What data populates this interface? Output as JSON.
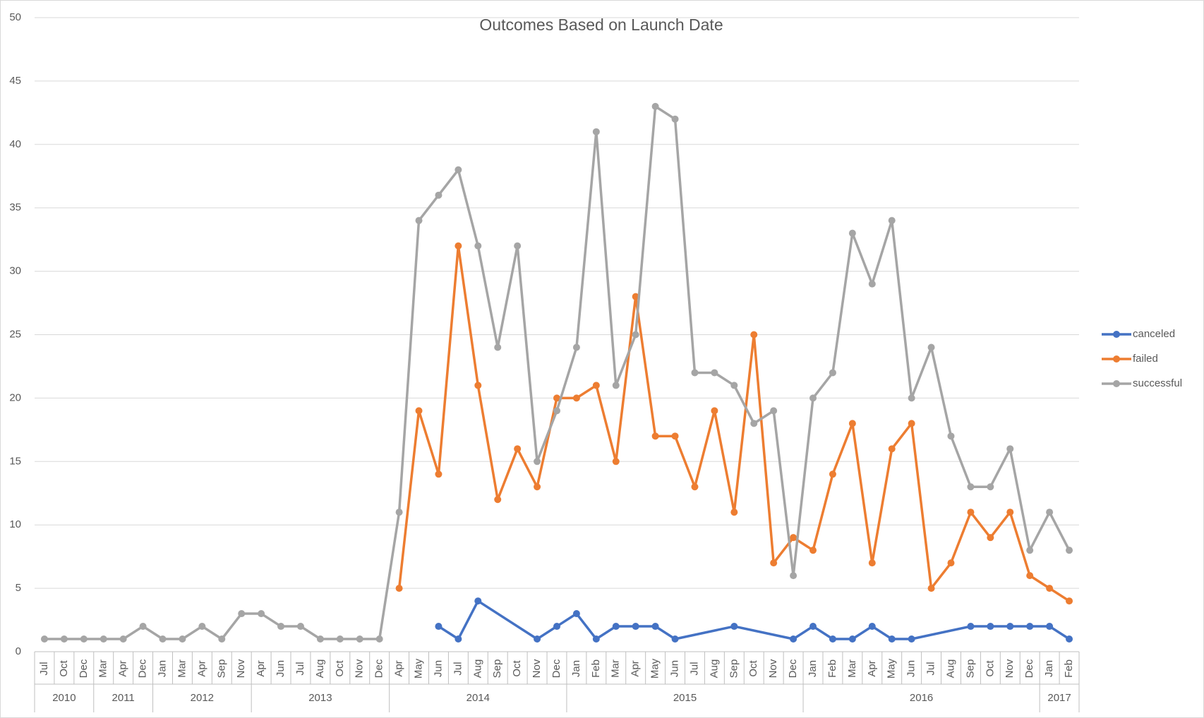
{
  "chart_data": {
    "type": "line",
    "title": "Outcomes Based on Launch Date",
    "groups": [
      {
        "label": "2010",
        "categories": [
          "Jul",
          "Oct",
          "Dec"
        ]
      },
      {
        "label": "2011",
        "categories": [
          "Mar",
          "Apr",
          "Dec"
        ]
      },
      {
        "label": "2012",
        "categories": [
          "Jan",
          "Mar",
          "Apr",
          "Sep",
          "Nov"
        ]
      },
      {
        "label": "2013",
        "categories": [
          "Apr",
          "Jun",
          "Jul",
          "Aug",
          "Oct",
          "Nov",
          "Dec"
        ]
      },
      {
        "label": "2014",
        "categories": [
          "Apr",
          "May",
          "Jun",
          "Jul",
          "Aug",
          "Sep",
          "Oct",
          "Nov",
          "Dec"
        ]
      },
      {
        "label": "2015",
        "categories": [
          "Jan",
          "Feb",
          "Mar",
          "Apr",
          "May",
          "Jun",
          "Jul",
          "Aug",
          "Sep",
          "Oct",
          "Nov",
          "Dec"
        ]
      },
      {
        "label": "2016",
        "categories": [
          "Jan",
          "Feb",
          "Mar",
          "Apr",
          "May",
          "Jun",
          "Jul",
          "Aug",
          "Sep",
          "Oct",
          "Nov",
          "Dec"
        ]
      },
      {
        "label": "2017",
        "categories": [
          "Jan",
          "Feb"
        ]
      }
    ],
    "series": [
      {
        "name": "canceled",
        "color": "#4472c4",
        "values": [
          null,
          null,
          null,
          null,
          null,
          null,
          null,
          null,
          null,
          null,
          null,
          null,
          null,
          null,
          null,
          null,
          null,
          null,
          null,
          null,
          2,
          1,
          4,
          null,
          null,
          1,
          2,
          3,
          1,
          2,
          2,
          2,
          1,
          null,
          null,
          2,
          null,
          null,
          1,
          2,
          1,
          1,
          2,
          1,
          1,
          null,
          null,
          2,
          2,
          2,
          2,
          2,
          1
        ]
      },
      {
        "name": "failed",
        "color": "#ed7d31",
        "values": [
          null,
          null,
          null,
          null,
          null,
          null,
          null,
          null,
          null,
          null,
          null,
          null,
          null,
          null,
          null,
          null,
          null,
          null,
          5,
          19,
          14,
          32,
          21,
          12,
          16,
          13,
          20,
          20,
          21,
          15,
          28,
          17,
          17,
          13,
          19,
          11,
          25,
          7,
          9,
          8,
          14,
          18,
          7,
          16,
          18,
          5,
          7,
          11,
          9,
          11,
          6,
          5,
          4
        ]
      },
      {
        "name": "successful",
        "color": "#a5a5a5",
        "values": [
          1,
          1,
          1,
          1,
          1,
          2,
          1,
          1,
          2,
          1,
          3,
          3,
          2,
          2,
          1,
          1,
          1,
          1,
          11,
          34,
          36,
          38,
          32,
          24,
          32,
          15,
          19,
          24,
          41,
          21,
          25,
          43,
          42,
          22,
          22,
          21,
          18,
          19,
          6,
          20,
          22,
          33,
          29,
          34,
          20,
          24,
          17,
          13,
          13,
          16,
          8,
          11,
          8
        ]
      }
    ],
    "ylim": [
      0,
      50
    ],
    "yticks": [
      0,
      5,
      10,
      15,
      20,
      25,
      30,
      35,
      40,
      45,
      50
    ],
    "grid": true,
    "markers": true,
    "connect_gaps": true,
    "legend": "right"
  }
}
